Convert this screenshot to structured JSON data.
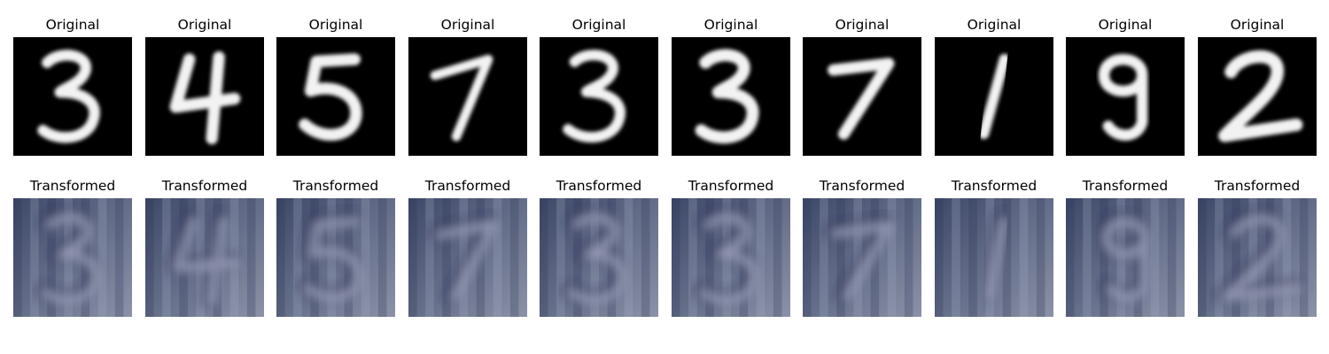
{
  "labels": {
    "original": "Original",
    "transformed": "Transformed"
  },
  "samples": [
    {
      "digit": "3",
      "transformed_glyph": "3"
    },
    {
      "digit": "4",
      "transformed_glyph": "4"
    },
    {
      "digit": "5",
      "transformed_glyph": "5"
    },
    {
      "digit": "7",
      "transformed_glyph": "7"
    },
    {
      "digit": "3",
      "transformed_glyph": "3"
    },
    {
      "digit": "3",
      "transformed_glyph": "3"
    },
    {
      "digit": "7",
      "transformed_glyph": "7"
    },
    {
      "digit": "1",
      "transformed_glyph": "1"
    },
    {
      "digit": "9",
      "transformed_glyph": "9"
    },
    {
      "digit": "2",
      "transformed_glyph": "2"
    }
  ],
  "colors": {
    "original_bg": "#000000",
    "original_stroke": "#f2f2f2",
    "transformed_bg_dark": "#3d4868",
    "transformed_bg_light": "#8b92a8",
    "transformed_stroke_light": "#c6cbe0",
    "transformed_stroke_dark": "#1c2350"
  }
}
